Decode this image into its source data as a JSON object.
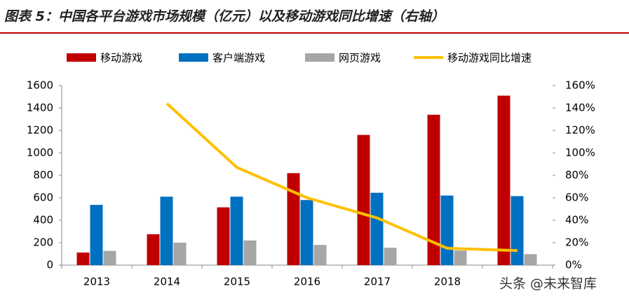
{
  "chart_data": {
    "type": "bar",
    "title": "图表 5：中国各平台游戏市场规模（亿元）以及移动游戏同比增速（右轴）",
    "watermark": "头条 @未来智库",
    "categories": [
      "2013",
      "2014",
      "2015",
      "2016",
      "2017",
      "2018",
      null
    ],
    "series": [
      {
        "name": "移动游戏",
        "color": "#c00000",
        "type": "bar",
        "values": [
          112,
          275,
          515,
          820,
          1160,
          1340,
          1510
        ]
      },
      {
        "name": "客户端游戏",
        "color": "#0070c0",
        "type": "bar",
        "values": [
          537,
          610,
          610,
          580,
          645,
          620,
          615
        ]
      },
      {
        "name": "网页游戏",
        "color": "#a6a6a6",
        "type": "bar",
        "values": [
          127,
          200,
          220,
          180,
          155,
          130,
          98
        ]
      },
      {
        "name": "移动游戏同比增速",
        "color": "#ffc000",
        "type": "line",
        "axis": "y2",
        "values": [
          null,
          144,
          87,
          60,
          42,
          15,
          13
        ]
      }
    ],
    "ylim": [
      0,
      1600
    ],
    "yticks": [
      0,
      200,
      400,
      600,
      800,
      1000,
      1200,
      1400,
      1600
    ],
    "y2lim": [
      0,
      160
    ],
    "y2ticks": [
      {
        "value": 0,
        "label": "0%"
      },
      {
        "value": 20,
        "label": "20%"
      },
      {
        "value": 40,
        "label": "40%"
      },
      {
        "value": 60,
        "label": "60%"
      },
      {
        "value": 80,
        "label": "80%"
      },
      {
        "value": 100,
        "label": "100%"
      },
      {
        "value": 120,
        "label": "120%"
      },
      {
        "value": 140,
        "label": "140%"
      },
      {
        "value": 160,
        "label": "160%"
      }
    ]
  }
}
